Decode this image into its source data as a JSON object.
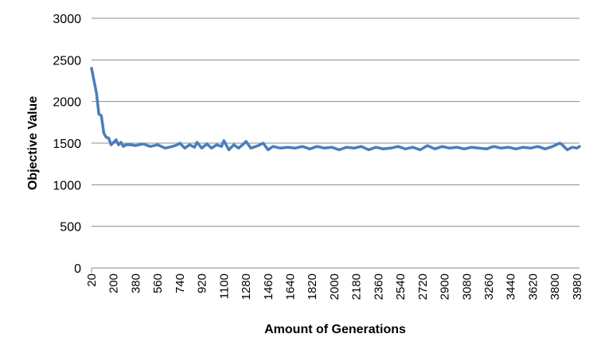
{
  "chart_data": {
    "type": "line",
    "title": "",
    "xlabel": "Amount of Generations",
    "ylabel": "Objective Value",
    "ylim": [
      0,
      3000
    ],
    "yticks": [
      0,
      500,
      1000,
      1500,
      2000,
      2500,
      3000
    ],
    "x_tick_labels": [
      "20",
      "200",
      "380",
      "560",
      "740",
      "920",
      "1100",
      "1280",
      "1460",
      "1640",
      "1820",
      "2000",
      "2180",
      "2360",
      "2540",
      "2720",
      "2900",
      "3080",
      "3260",
      "3440",
      "3620",
      "3800",
      "3980"
    ],
    "x_range": [
      20,
      4000
    ],
    "grid": "horizontal",
    "legend": "none",
    "line_color": "#4a7ebb",
    "series": [
      {
        "x": [
          20,
          60,
          80,
          100,
          120,
          140,
          160,
          180,
          200,
          220,
          240,
          260,
          280,
          300,
          340,
          380,
          440,
          500,
          560,
          620,
          680,
          720,
          740,
          780,
          820,
          860,
          880,
          920,
          960,
          1000,
          1040,
          1080,
          1100,
          1140,
          1180,
          1220,
          1260,
          1280,
          1320,
          1380,
          1420,
          1460,
          1500,
          1560,
          1620,
          1680,
          1740,
          1800,
          1860,
          1920,
          1980,
          2040,
          2100,
          2160,
          2220,
          2280,
          2340,
          2400,
          2460,
          2520,
          2580,
          2640,
          2700,
          2760,
          2820,
          2880,
          2940,
          3000,
          3060,
          3120,
          3180,
          3240,
          3300,
          3360,
          3420,
          3480,
          3540,
          3600,
          3660,
          3720,
          3780,
          3840,
          3860,
          3900,
          3940,
          3980,
          4000
        ],
        "y": [
          2400,
          2100,
          1850,
          1830,
          1620,
          1570,
          1560,
          1480,
          1510,
          1540,
          1480,
          1510,
          1460,
          1480,
          1480,
          1470,
          1490,
          1460,
          1480,
          1440,
          1460,
          1480,
          1500,
          1440,
          1480,
          1450,
          1510,
          1440,
          1490,
          1440,
          1480,
          1460,
          1530,
          1420,
          1480,
          1440,
          1490,
          1520,
          1440,
          1470,
          1500,
          1420,
          1460,
          1440,
          1450,
          1440,
          1460,
          1430,
          1460,
          1440,
          1450,
          1420,
          1450,
          1440,
          1460,
          1420,
          1450,
          1430,
          1440,
          1460,
          1430,
          1450,
          1420,
          1470,
          1430,
          1460,
          1440,
          1450,
          1430,
          1450,
          1440,
          1430,
          1460,
          1440,
          1450,
          1430,
          1450,
          1440,
          1460,
          1430,
          1460,
          1500,
          1480,
          1420,
          1450,
          1440,
          1460
        ]
      }
    ]
  }
}
